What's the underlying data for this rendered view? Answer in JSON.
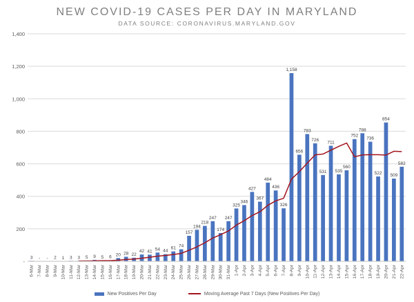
{
  "chart_data": {
    "type": "bar",
    "title": "NEW COVID-19 CASES PER DAY IN MARYLAND",
    "subtitle": "DATA SOURCE: CORONAVIRUS.MARYLAND.GOV",
    "xlabel": "",
    "ylabel": "",
    "ylim": [
      0,
      1400
    ],
    "y_ticks": [
      "-",
      "200",
      "400",
      "600",
      "800",
      "1,000",
      "1,200",
      "1,400"
    ],
    "grid": true,
    "legend_position": "bottom",
    "categories": [
      "6-Mar",
      "7-Mar",
      "8-Mar",
      "9-Mar",
      "10-Mar",
      "11-Mar",
      "12-Mar",
      "13-Mar",
      "14-Mar",
      "15-Mar",
      "16-Mar",
      "17-Mar",
      "18-Mar",
      "19-Mar",
      "20-Mar",
      "21-Mar",
      "22-Mar",
      "23-Mar",
      "24-Mar",
      "25-Mar",
      "26-Mar",
      "27-Mar",
      "28-Mar",
      "29-Mar",
      "30-Mar",
      "31-Mar",
      "1-Apr",
      "2-Apr",
      "3-Apr",
      "4-Apr",
      "5-Apr",
      "6-Apr",
      "7-Apr",
      "8-Apr",
      "9-Apr",
      "10-Apr",
      "11-Apr",
      "12-Apr",
      "13-Apr",
      "14-Apr",
      "15-Apr",
      "16-Apr",
      "17-Apr",
      "18-Apr",
      "19-Apr",
      "20-Apr",
      "21-Apr",
      "22-Apr"
    ],
    "series": [
      {
        "name": "New Positives Per Day",
        "type": "bar",
        "color": "#4a74bf",
        "values": [
          3,
          0,
          0,
          2,
          1,
          3,
          3,
          5,
          9,
          5,
          6,
          20,
          28,
          22,
          42,
          41,
          54,
          44,
          61,
          74,
          157,
          194,
          218,
          247,
          174,
          247,
          325,
          346,
          427,
          367,
          484,
          436,
          326,
          1158,
          656,
          783,
          726,
          531,
          711,
          535,
          560,
          752,
          788,
          736,
          522,
          854,
          509,
          582
        ],
        "labels": [
          "3",
          "-",
          "-",
          "2",
          "1",
          "3",
          "3",
          "5",
          "9",
          "5",
          "6",
          "20",
          "28",
          "22",
          "42",
          "41",
          "54",
          "44",
          "61",
          "74",
          "157",
          "194",
          "218",
          "247",
          "174",
          "247",
          "325",
          "346",
          "427",
          "367",
          "484",
          "436",
          "326",
          "1,158",
          "656",
          "783",
          "726",
          "531",
          "711",
          "535",
          "560",
          "752",
          "788",
          "736",
          "522",
          "854",
          "509",
          "582"
        ]
      },
      {
        "name": "Moving Average Past 7 Days (New Positives Per Day)",
        "type": "line",
        "color": "#a3141d",
        "values": [
          null,
          null,
          null,
          null,
          null,
          null,
          2,
          2,
          3,
          4,
          4,
          7,
          11,
          14,
          19,
          25,
          32,
          36,
          42,
          49,
          68,
          89,
          114,
          143,
          164,
          187,
          223,
          250,
          282,
          305,
          345,
          372,
          388,
          506,
          552,
          604,
          655,
          660,
          684,
          707,
          728,
          643,
          655,
          656,
          656,
          654,
          677,
          675
        ]
      }
    ]
  }
}
